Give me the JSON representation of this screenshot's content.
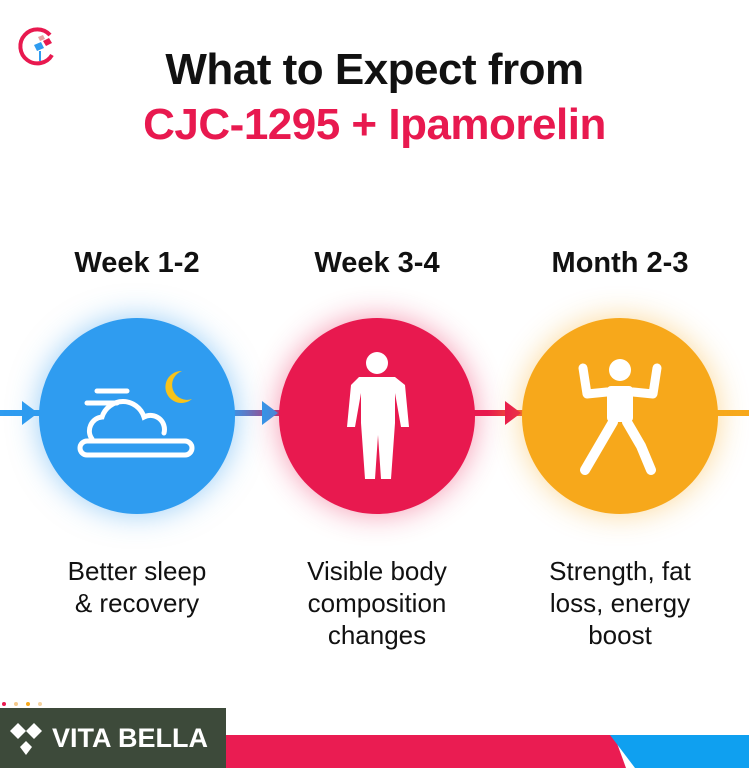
{
  "title": {
    "line1": "What to Expect from",
    "line2": "CJC-1295 + Ipamorelin"
  },
  "colors": {
    "blue": "#2f9cf0",
    "red": "#e8194f",
    "yellow": "#f7a81b",
    "brand_bg": "#3d4a3a"
  },
  "steps": [
    {
      "label": "Week 1-2",
      "caption": [
        "Better sleep",
        "& recovery"
      ],
      "icon": "cloud-moon-icon"
    },
    {
      "label": "Week 3-4",
      "caption": [
        "Visible body",
        "composition",
        "changes"
      ],
      "icon": "body-silhouette-icon"
    },
    {
      "label": "Month 2-3",
      "caption": [
        "Strength, fat",
        "loss, energy",
        "boost"
      ],
      "icon": "flexing-person-icon"
    }
  ],
  "brand": {
    "name": "VITA BELLA"
  }
}
